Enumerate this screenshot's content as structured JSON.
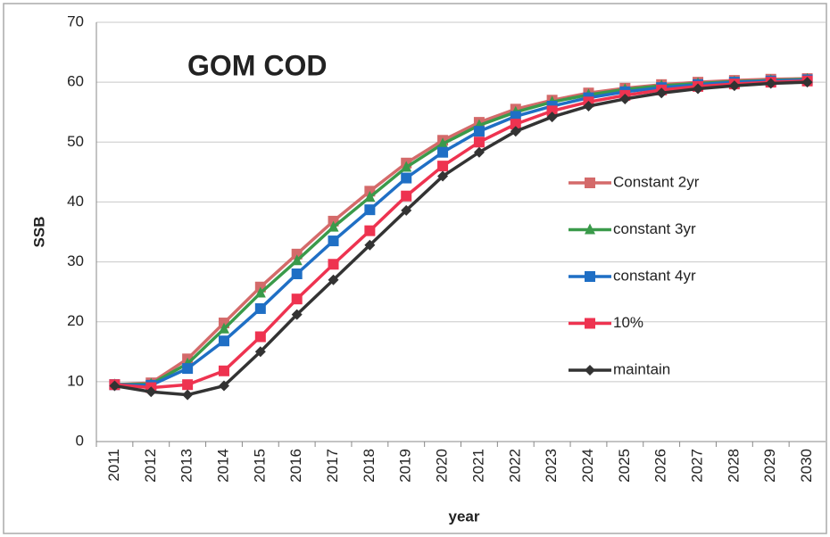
{
  "chart_data": {
    "type": "line",
    "title": "GOM COD",
    "x_label": "year",
    "y_label": "SSB",
    "categories": [
      "2011",
      "2012",
      "2013",
      "2014",
      "2015",
      "2016",
      "2017",
      "2018",
      "2019",
      "2020",
      "2021",
      "2022",
      "2023",
      "2024",
      "2025",
      "2026",
      "2027",
      "2028",
      "2029",
      "2030"
    ],
    "ylim": [
      0,
      70
    ],
    "yticks": [
      0,
      10,
      20,
      30,
      40,
      50,
      60,
      70
    ],
    "grid": true,
    "legend": "right",
    "series": [
      {
        "name": "Constant 2yr",
        "color": "#d46a6a",
        "marker": "square",
        "values": [
          9.5,
          9.8,
          13.8,
          19.8,
          25.8,
          31.3,
          36.8,
          41.8,
          46.5,
          50.3,
          53.3,
          55.5,
          57.0,
          58.2,
          59.0,
          59.6,
          60.0,
          60.3,
          60.5,
          60.6
        ]
      },
      {
        "name": "constant 3yr",
        "color": "#3a9a4a",
        "marker": "triangle",
        "values": [
          9.5,
          9.6,
          13.0,
          18.8,
          24.8,
          30.2,
          35.8,
          40.8,
          45.8,
          49.7,
          52.8,
          55.0,
          56.7,
          57.9,
          58.8,
          59.4,
          59.8,
          60.1,
          60.3,
          60.5
        ]
      },
      {
        "name": "constant 4yr",
        "color": "#1f6fc5",
        "marker": "square",
        "values": [
          9.5,
          9.4,
          12.2,
          16.8,
          22.2,
          28.0,
          33.5,
          38.7,
          44.0,
          48.3,
          51.8,
          54.3,
          56.0,
          57.4,
          58.4,
          59.1,
          59.6,
          60.0,
          60.2,
          60.4
        ]
      },
      {
        "name": "10%",
        "color": "#ee3350",
        "marker": "square",
        "values": [
          9.5,
          9.0,
          9.5,
          11.8,
          17.5,
          23.8,
          29.6,
          35.2,
          41.0,
          46.0,
          50.0,
          53.0,
          55.2,
          56.7,
          57.8,
          58.7,
          59.3,
          59.7,
          60.0,
          60.2
        ]
      },
      {
        "name": "maintain",
        "color": "#333333",
        "marker": "diamond",
        "values": [
          9.3,
          8.3,
          7.8,
          9.3,
          15.0,
          21.2,
          27.0,
          32.8,
          38.6,
          44.3,
          48.3,
          51.8,
          54.2,
          56.0,
          57.2,
          58.2,
          58.9,
          59.4,
          59.8,
          60.0
        ]
      }
    ]
  }
}
